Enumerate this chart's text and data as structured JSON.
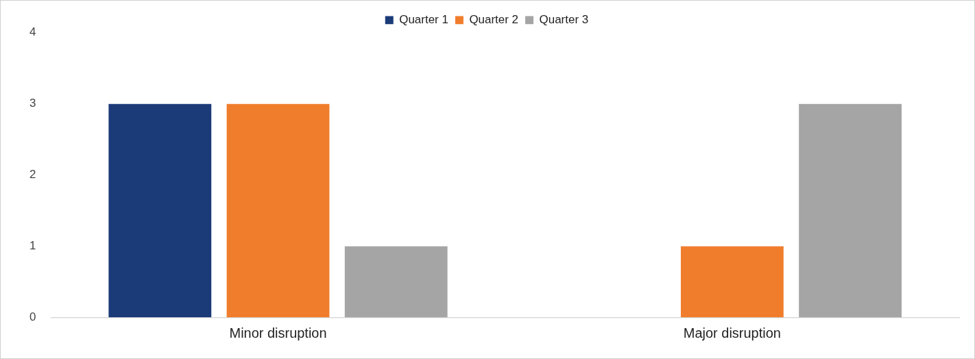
{
  "chart_data": {
    "type": "bar",
    "categories": [
      "Minor disruption",
      "Major disruption"
    ],
    "series": [
      {
        "name": "Quarter 1",
        "color": "#1b3a78",
        "values": [
          3,
          0
        ]
      },
      {
        "name": "Quarter 2",
        "color": "#f07d2c",
        "values": [
          3,
          1
        ]
      },
      {
        "name": "Quarter 3",
        "color": "#a5a5a5",
        "values": [
          1,
          3
        ]
      }
    ],
    "ylim": [
      0,
      4
    ],
    "yticks": [
      0,
      1,
      2,
      3,
      4
    ],
    "grid": false,
    "legend": "top"
  }
}
